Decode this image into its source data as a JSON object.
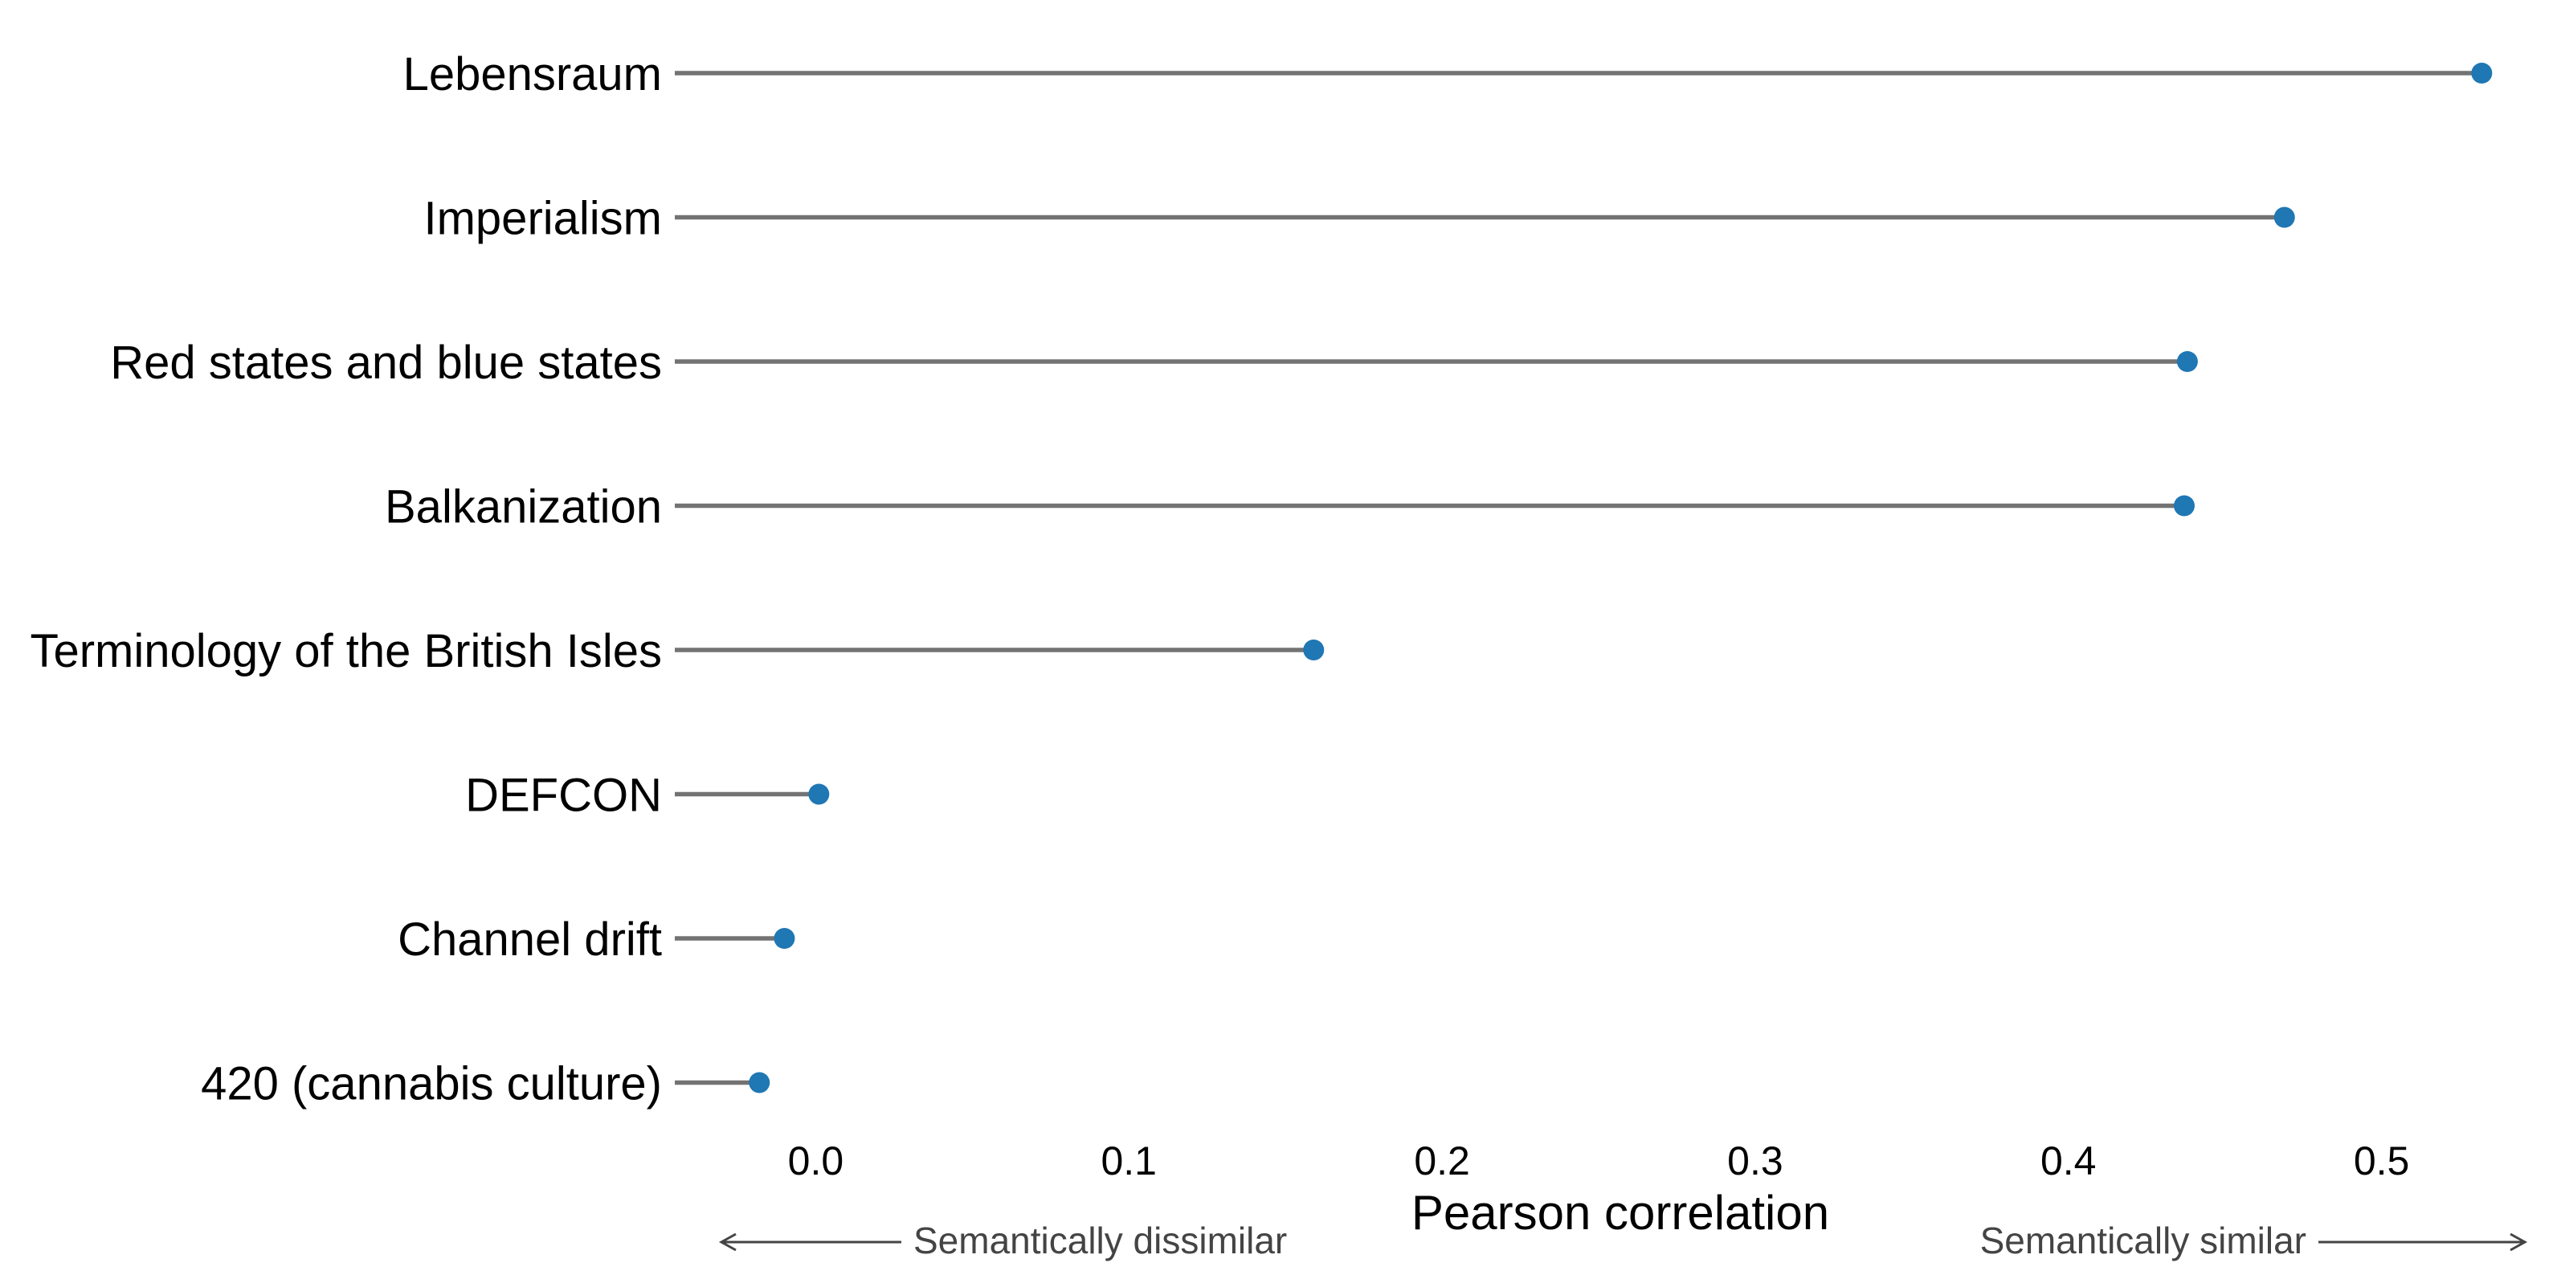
{
  "chart_data": {
    "type": "lollipop",
    "orientation": "horizontal",
    "categories": [
      "Lebensraum",
      "Imperialism",
      "Red states and blue states",
      "Balkanization",
      "Terminology of the British Isles",
      "DEFCON",
      "Channel drift",
      "420 (cannabis culture)"
    ],
    "values": [
      0.532,
      0.469,
      0.438,
      0.437,
      0.159,
      0.001,
      -0.01,
      -0.018
    ],
    "xlabel": "Pearson correlation",
    "ylabel": "",
    "xlim": [
      -0.045,
      0.545
    ],
    "xticks": [
      0.0,
      0.1,
      0.2,
      0.3,
      0.4,
      0.5
    ],
    "xtick_labels": [
      "0.0",
      "0.1",
      "0.2",
      "0.3",
      "0.4",
      "0.5"
    ],
    "grid": false,
    "annotations": {
      "left": "Semantically dissimilar",
      "right": "Semantically similar"
    },
    "colors": {
      "point": "#1f77b4",
      "stem": "#737373",
      "text": "#000000",
      "annotation": "#444444"
    }
  }
}
